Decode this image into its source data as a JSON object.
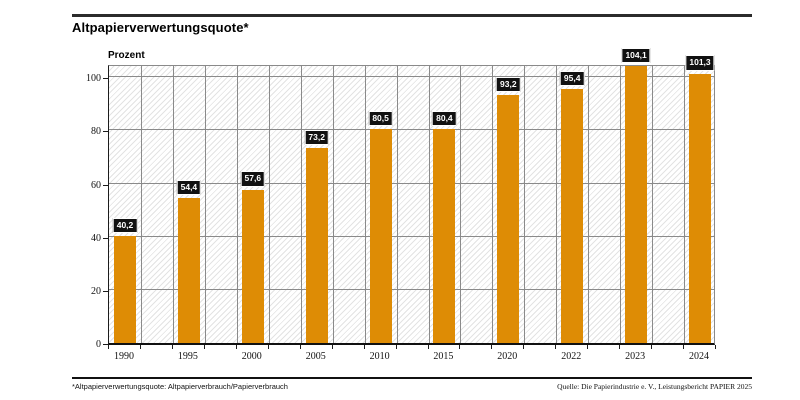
{
  "page": {
    "title": "Altpapierverwertungsquote*",
    "footnote": "*Altpapierverwertungsquote: Altpapierverbrauch/Papierverbrauch",
    "source": "Quelle: Die Papierindustrie e. V., Leistungsbericht PAPIER 2025"
  },
  "chart_data": {
    "type": "bar",
    "title": "Altpapierverwertungsquote*",
    "xlabel": "",
    "ylabel": "Prozent",
    "categories": [
      "1990",
      "1995",
      "2000",
      "2005",
      "2010",
      "2015",
      "2020",
      "2022",
      "2023",
      "2024"
    ],
    "values": [
      40.2,
      54.4,
      57.6,
      73.2,
      80.5,
      80.4,
      93.2,
      95.4,
      104.1,
      101.3
    ],
    "value_labels": [
      "40,2",
      "54,4",
      "57,6",
      "73,2",
      "80,5",
      "80,4",
      "93,2",
      "95,4",
      "104,1",
      "101,3"
    ],
    "yticks": [
      0,
      20,
      40,
      60,
      80,
      100
    ],
    "ylim": [
      0,
      105.3
    ],
    "grid": true,
    "legend": "none",
    "background_pattern": "diagonal-hatch",
    "colors": {
      "bar": "#de8c05",
      "grid": "#8a8a8a",
      "axis": "#1c1c1c",
      "value_label_bg": "#111111",
      "value_label_fg": "#ffffff",
      "text": "#000000"
    }
  }
}
